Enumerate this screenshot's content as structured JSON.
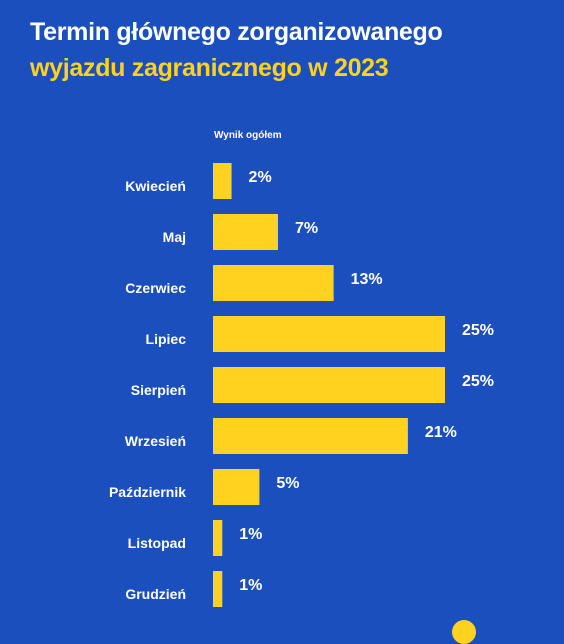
{
  "title": {
    "line1": "Termin głównego zorganizowanego",
    "line2": "wyjazdu zagranicznego w 2023"
  },
  "colors": {
    "background": "#1b4fbd",
    "bar": "#ffd21f",
    "text": "#ffffff",
    "title_accent": "#ffd21f"
  },
  "chart_data": {
    "type": "bar",
    "orientation": "horizontal",
    "title": "Termin głównego zorganizowanego wyjazdu zagranicznego w 2023",
    "series": [
      {
        "name": "Wynik ogółem",
        "values": [
          2,
          7,
          13,
          25,
          25,
          21,
          5,
          1,
          1
        ]
      }
    ],
    "categories": [
      "Kwiecień",
      "Maj",
      "Czerwiec",
      "Lipiec",
      "Sierpień",
      "Wrzesień",
      "Październik",
      "Listopad",
      "Grudzień"
    ],
    "value_labels": [
      "2%",
      "7%",
      "13%",
      "25%",
      "25%",
      "21%",
      "5%",
      "1%",
      "1%"
    ],
    "unit": "%",
    "xlim": [
      0,
      25
    ],
    "grid": false,
    "legend": "top-left"
  }
}
